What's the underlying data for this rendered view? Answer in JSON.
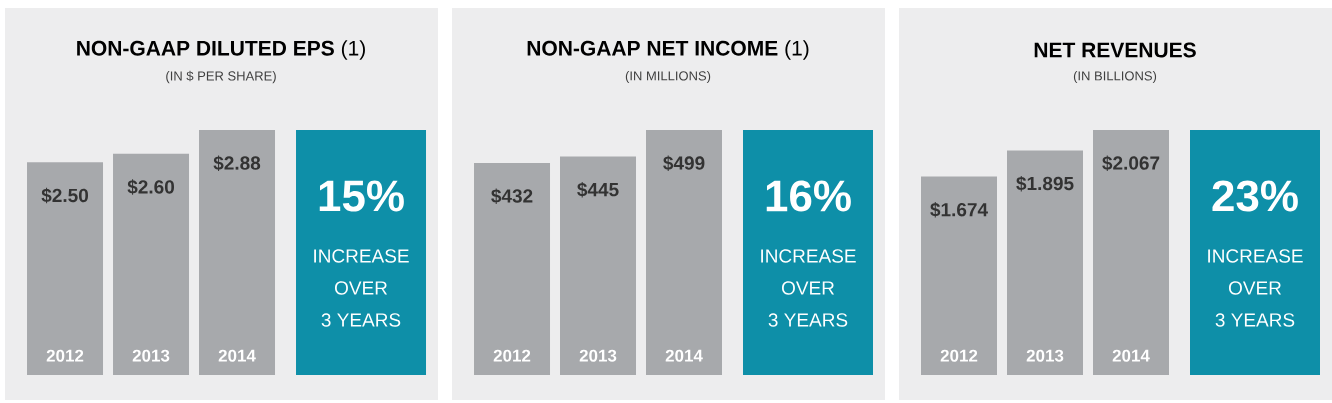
{
  "chart_data": [
    {
      "type": "bar",
      "title": "**NON-GAAP DILUTED EPS** (1)",
      "subtitle": "(IN $ PER SHARE)",
      "categories": [
        "2012",
        "2013",
        "2014"
      ],
      "values": [
        2.5,
        2.6,
        2.88
      ],
      "value_labels": [
        "$2.50",
        "$2.60",
        "$2.88"
      ],
      "color": "#a7a9ac",
      "annotations": [
        "15%",
        "INCREASE",
        "OVER",
        "3 YEARS"
      ]
    },
    {
      "type": "bar",
      "title": "**NON-GAAP NET INCOME** (1)",
      "subtitle": "(IN MILLIONS)",
      "categories": [
        "2012",
        "2013",
        "2014"
      ],
      "values": [
        432,
        445,
        499
      ],
      "value_labels": [
        "$432",
        "$445",
        "$499"
      ],
      "color": "#a7a9ac",
      "annotations": [
        "16%",
        "INCREASE",
        "OVER",
        "3 YEARS"
      ]
    },
    {
      "type": "bar",
      "title": "**NET REVENUES**",
      "subtitle": "(IN BILLIONS)",
      "categories": [
        "2012",
        "2013",
        "2014"
      ],
      "values": [
        1.674,
        1.895,
        2.067
      ],
      "value_labels": [
        "$1.674",
        "$1.895",
        "$2.067"
      ],
      "color": "#a7a9ac",
      "annotations": [
        "23%",
        "INCREASE",
        "OVER",
        "3 YEARS"
      ]
    }
  ]
}
